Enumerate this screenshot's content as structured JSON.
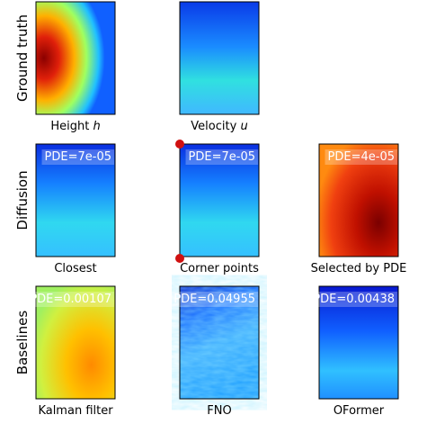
{
  "rows": [
    {
      "label": "Ground truth",
      "panels": [
        {
          "caption": {
            "text": "Height",
            "var": "h"
          }
        },
        {
          "caption": {
            "text": "Velocity",
            "var": "u"
          }
        }
      ]
    },
    {
      "label": "Diffusion",
      "panels": [
        {
          "caption": {
            "text": "Closest"
          },
          "badge": "PDE=7e-05"
        },
        {
          "caption": {
            "text": "Corner points"
          },
          "badge": "PDE=7e-05"
        },
        {
          "caption": {
            "text": "Selected by PDE"
          },
          "badge": "PDE=4e-05"
        }
      ]
    },
    {
      "label": "Baselines",
      "panels": [
        {
          "caption": {
            "text": "Kalman filter"
          },
          "badge": "PDE=0.00107"
        },
        {
          "caption": {
            "text": "FNO"
          },
          "badge": "PDE=0.04955"
        },
        {
          "caption": {
            "text": "OFormer"
          },
          "badge": "PDE=0.00438"
        }
      ]
    }
  ]
}
